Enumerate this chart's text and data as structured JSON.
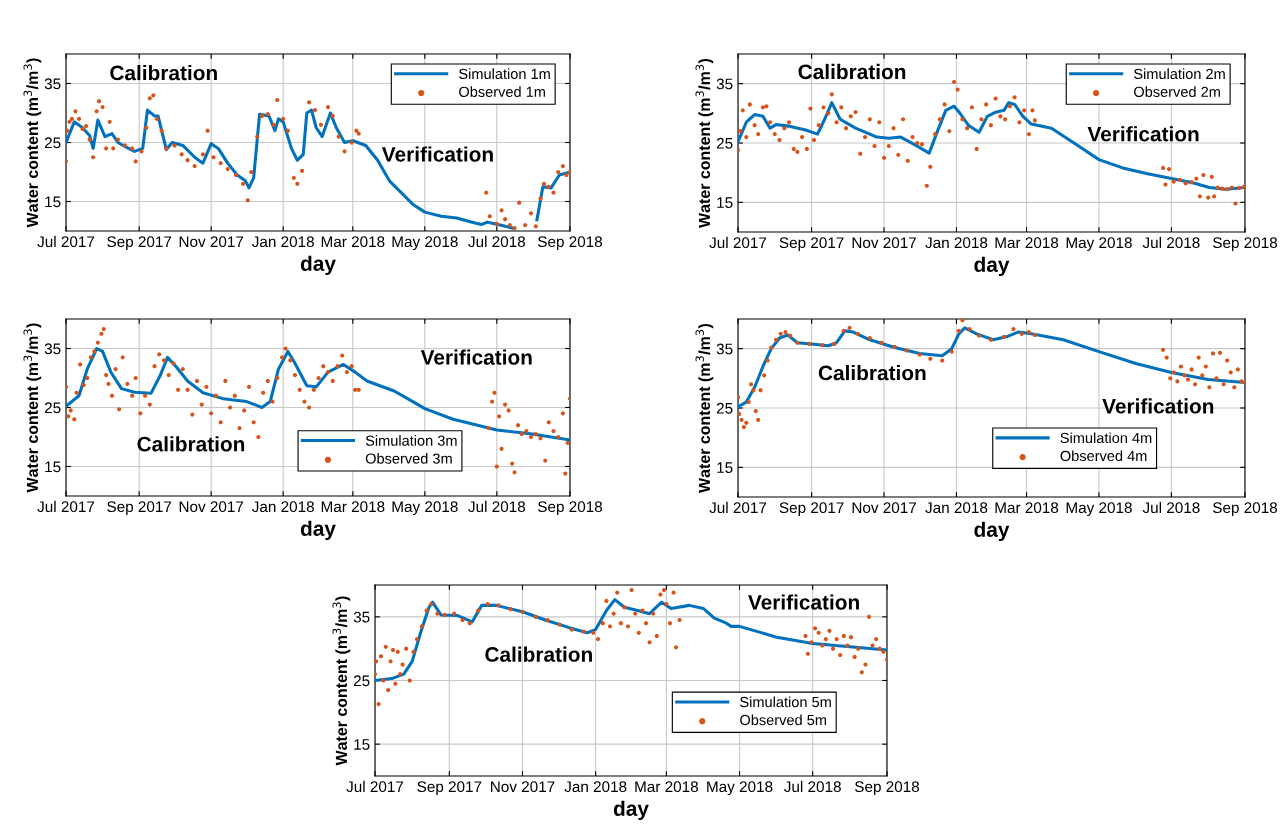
{
  "chart_data": [
    {
      "type": "line",
      "xlabel": "day",
      "ylabel": "Water content (m$^{3}$/m$^{3}$)",
      "xlim": [
        "2017-07-01",
        "2018-09-01"
      ],
      "ylim": [
        10,
        40
      ],
      "yticks": [
        15,
        25,
        35
      ],
      "xticks": [
        {
          "value": "2017-07-01",
          "label": "Jul 2017"
        },
        {
          "value": "2017-09-01",
          "label": "Sep 2017"
        },
        {
          "value": "2017-11-01",
          "label": "Nov 2017"
        },
        {
          "value": "2018-01-01",
          "label": "Jan 2018"
        },
        {
          "value": "2018-03-01",
          "label": "Mar 2018"
        },
        {
          "value": "2018-05-01",
          "label": "May 2018"
        },
        {
          "value": "2018-07-01",
          "label": "Jul 2018"
        },
        {
          "value": "2018-09-01",
          "label": "Sep 2018"
        }
      ],
      "grid": true,
      "legend": "top right",
      "annotations": [
        "Calibration",
        "Verification"
      ],
      "series": [
        {
          "name": "Simulation 1m",
          "color": "#0072bd",
          "x": [
            "2017-07-01",
            "2017-07-08",
            "2017-07-15",
            "2017-07-21",
            "2017-07-24",
            "2017-07-28",
            "2017-08-03",
            "2017-08-09",
            "2017-08-14",
            "2017-08-21",
            "2017-08-28",
            "2017-09-04",
            "2017-09-08",
            "2017-09-14",
            "2017-09-17",
            "2017-09-24",
            "2017-09-29",
            "2017-10-08",
            "2017-10-18",
            "2017-10-25",
            "2017-11-01",
            "2017-11-07",
            "2017-11-15",
            "2017-11-23",
            "2017-11-30",
            "2017-12-03",
            "2017-12-07",
            "2017-12-12",
            "2017-12-20",
            "2017-12-25",
            "2017-12-28",
            "2018-01-01",
            "2018-01-08",
            "2018-01-13",
            "2018-01-18",
            "2018-01-21",
            "2018-01-25",
            "2018-01-29",
            "2018-02-03",
            "2018-02-10",
            "2018-02-15",
            "2018-02-22",
            "2018-03-01",
            "2018-03-12",
            "2018-03-22",
            "2018-04-01",
            "2018-04-11",
            "2018-04-21",
            "2018-05-01",
            "2018-05-15",
            "2018-05-28",
            "2018-06-10",
            "2018-06-18",
            "2018-06-23",
            "2018-07-04",
            "2018-07-14",
            "2018-07-20",
            "2018-08-04",
            "2018-08-09",
            "2018-08-16",
            "2018-08-23",
            "2018-09-01"
          ],
          "values": [
            25,
            28.5,
            27.5,
            26.2,
            24,
            28.8,
            26,
            26.5,
            25,
            24.2,
            23.5,
            24,
            30.5,
            29.5,
            29.5,
            23.8,
            25,
            24.5,
            22.5,
            21.5,
            24.8,
            24,
            21.5,
            19.5,
            18.5,
            17.3,
            19,
            29.8,
            29.5,
            27,
            29,
            28.5,
            24,
            22,
            23,
            30,
            30.5,
            27.5,
            26,
            30,
            27.5,
            25,
            25.3,
            24.5,
            22,
            18.5,
            16.5,
            14.5,
            13.2,
            12.5,
            12.2,
            11.5,
            11.1,
            11.5,
            11,
            10.5,
            null,
            11.9,
            17.5,
            17.3,
            19.5,
            20
          ]
        },
        {
          "name": "Observed 1m",
          "type": "scatter",
          "marker": "circle",
          "color": "#d95319",
          "x": [
            "2017-07-01",
            "2017-07-02",
            "2017-07-04",
            "2017-07-06",
            "2017-07-09",
            "2017-07-12",
            "2017-07-15",
            "2017-07-18",
            "2017-07-21",
            "2017-07-24",
            "2017-07-27",
            "2017-07-29",
            "2017-08-01",
            "2017-08-04",
            "2017-08-07",
            "2017-08-10",
            "2017-08-14",
            "2017-08-20",
            "2017-08-26",
            "2017-08-29",
            "2017-09-03",
            "2017-09-07",
            "2017-09-10",
            "2017-09-13",
            "2017-09-16",
            "2017-09-20",
            "2017-09-24",
            "2017-10-01",
            "2017-10-07",
            "2017-10-12",
            "2017-10-18",
            "2017-10-25",
            "2017-10-29",
            "2017-11-03",
            "2017-11-09",
            "2017-11-15",
            "2017-11-22",
            "2017-11-28",
            "2017-12-02",
            "2017-12-05",
            "2017-12-10",
            "2017-12-14",
            "2017-12-19",
            "2017-12-24",
            "2017-12-27",
            "2018-01-01",
            "2018-01-05",
            "2018-01-10",
            "2018-01-13",
            "2018-01-17",
            "2018-01-23",
            "2018-01-28",
            "2018-02-02",
            "2018-02-08",
            "2018-02-12",
            "2018-02-17",
            "2018-02-22",
            "2018-02-28",
            "2018-03-04",
            "2018-03-06",
            "2018-06-22",
            "2018-06-25",
            "2018-07-01",
            "2018-07-05",
            "2018-07-08",
            "2018-07-12",
            "2018-07-16",
            "2018-07-20",
            "2018-07-25",
            "2018-07-30",
            "2018-08-03",
            "2018-08-07",
            "2018-08-10",
            "2018-08-14",
            "2018-08-18",
            "2018-08-22",
            "2018-08-26",
            "2018-08-29",
            "2018-09-01"
          ],
          "values": [
            21.8,
            27,
            28.5,
            29,
            30.3,
            29,
            27.3,
            27.8,
            25.5,
            22.5,
            30.3,
            32,
            31,
            24,
            28.5,
            24,
            25.5,
            24.5,
            24,
            21.8,
            23.5,
            27.5,
            32.5,
            33,
            29,
            27,
            24,
            24.5,
            23,
            22,
            21,
            23,
            27,
            22.5,
            21.5,
            20.5,
            19.5,
            18,
            15.2,
            20,
            26,
            29.5,
            29.8,
            28,
            32.2,
            29,
            27,
            19,
            18,
            20.2,
            31.8,
            30.5,
            28,
            31,
            29.5,
            26,
            23.5,
            25,
            27,
            26.5,
            16.5,
            12.5,
            11.2,
            13.5,
            12,
            11,
            10.5,
            14.8,
            11,
            13,
            10.8,
            15.5,
            18,
            17.5,
            16.5,
            20,
            21,
            19.5,
            20
          ]
        }
      ]
    },
    {
      "type": "line",
      "xlabel": "day",
      "ylabel": "Water content (m$^{3}$/m$^{3}$)",
      "xlim": [
        "2017-07-01",
        "2018-09-01"
      ],
      "ylim": [
        10,
        40
      ],
      "yticks": [
        15,
        25,
        35
      ],
      "xticks": [
        {
          "value": "2017-07-01",
          "label": "Jul 2017"
        },
        {
          "value": "2017-09-01",
          "label": "Sep 2017"
        },
        {
          "value": "2017-11-01",
          "label": "Nov 2017"
        },
        {
          "value": "2018-01-01",
          "label": "Jan 2018"
        },
        {
          "value": "2018-03-01",
          "label": "Mar 2018"
        },
        {
          "value": "2018-05-01",
          "label": "May 2018"
        },
        {
          "value": "2018-07-01",
          "label": "Jul 2018"
        },
        {
          "value": "2018-09-01",
          "label": "Sep 2018"
        }
      ],
      "grid": true,
      "legend": "top right",
      "annotations": [
        "Calibration",
        "Verification"
      ],
      "series": [
        {
          "name": "Simulation 2m",
          "color": "#0072bd",
          "x": [
            "2017-07-01",
            "2017-07-08",
            "2017-07-15",
            "2017-07-22",
            "2017-07-28",
            "2017-08-02",
            "2017-08-14",
            "2017-08-27",
            "2017-09-06",
            "2017-09-12",
            "2017-09-18",
            "2017-09-25",
            "2017-10-08",
            "2017-10-26",
            "2017-11-05",
            "2017-11-15",
            "2017-11-26",
            "2017-12-09",
            "2017-12-16",
            "2017-12-23",
            "2017-12-30",
            "2018-01-04",
            "2018-01-11",
            "2018-01-20",
            "2018-01-27",
            "2018-02-03",
            "2018-02-10",
            "2018-02-14",
            "2018-02-19",
            "2018-02-26",
            "2018-03-05",
            "2018-03-22",
            "2018-04-10",
            "2018-05-01",
            "2018-05-21",
            "2018-06-11",
            "2018-07-01",
            "2018-07-19",
            "2018-08-02",
            "2018-08-16",
            "2018-09-01"
          ],
          "values": [
            25.2,
            28.5,
            29.8,
            29.5,
            27.5,
            28.1,
            27.8,
            27.2,
            26.5,
            29,
            31.8,
            29,
            27.5,
            26,
            25.8,
            26,
            24.8,
            23.3,
            27,
            30.5,
            31.2,
            30,
            28,
            26.8,
            29.5,
            30.2,
            30.5,
            31.8,
            31.5,
            29.5,
            28.2,
            27.5,
            25,
            22.2,
            20.8,
            19.8,
            19,
            18.3,
            17.5,
            17.2,
            17.5
          ]
        },
        {
          "name": "Observed 2m",
          "type": "scatter",
          "marker": "circle",
          "color": "#d95319",
          "x": [
            "2017-07-01",
            "2017-07-03",
            "2017-07-05",
            "2017-07-08",
            "2017-07-11",
            "2017-07-15",
            "2017-07-18",
            "2017-07-22",
            "2017-07-25",
            "2017-07-28",
            "2017-08-01",
            "2017-08-05",
            "2017-08-09",
            "2017-08-13",
            "2017-08-17",
            "2017-08-20",
            "2017-08-24",
            "2017-08-28",
            "2017-08-31",
            "2017-09-03",
            "2017-09-07",
            "2017-09-11",
            "2017-09-15",
            "2017-09-18",
            "2017-09-22",
            "2017-09-26",
            "2017-09-30",
            "2017-10-04",
            "2017-10-08",
            "2017-10-12",
            "2017-10-16",
            "2017-10-20",
            "2017-10-24",
            "2017-10-28",
            "2017-11-01",
            "2017-11-05",
            "2017-11-09",
            "2017-11-13",
            "2017-11-17",
            "2017-11-21",
            "2017-11-25",
            "2017-11-29",
            "2017-12-03",
            "2017-12-07",
            "2017-12-10",
            "2017-12-14",
            "2017-12-18",
            "2017-12-22",
            "2017-12-26",
            "2017-12-30",
            "2018-01-02",
            "2018-01-06",
            "2018-01-10",
            "2018-01-14",
            "2018-01-18",
            "2018-01-22",
            "2018-01-26",
            "2018-01-30",
            "2018-02-03",
            "2018-02-07",
            "2018-02-11",
            "2018-02-15",
            "2018-02-19",
            "2018-02-23",
            "2018-02-27",
            "2018-03-03",
            "2018-03-06",
            "2018-03-08",
            "2018-06-24",
            "2018-06-26",
            "2018-06-29",
            "2018-07-03",
            "2018-07-08",
            "2018-07-13",
            "2018-07-18",
            "2018-07-22",
            "2018-07-25",
            "2018-07-28",
            "2018-08-01",
            "2018-08-04",
            "2018-08-06",
            "2018-08-09",
            "2018-08-13",
            "2018-08-17",
            "2018-08-21",
            "2018-08-24",
            "2018-08-27",
            "2018-08-31"
          ],
          "values": [
            23.8,
            27,
            30.5,
            26,
            31.5,
            28,
            26.5,
            31,
            31.2,
            28.5,
            26.5,
            25.5,
            27.5,
            28.5,
            24,
            23.5,
            26,
            24,
            30.8,
            25.5,
            28,
            31,
            30,
            33.2,
            28.5,
            31,
            27.5,
            29.5,
            30.2,
            23.2,
            26,
            29,
            24.5,
            28.5,
            22.5,
            24.5,
            27.5,
            23,
            29,
            22,
            26,
            25,
            24.8,
            17.8,
            21,
            26.5,
            29,
            31.5,
            27,
            35.3,
            34,
            29,
            27.5,
            31,
            24,
            29,
            31.5,
            28,
            32.5,
            29.5,
            29,
            31.2,
            32.7,
            28.5,
            30.5,
            26.5,
            30.5,
            28.8,
            20.8,
            18,
            20.6,
            18.5,
            18.8,
            18.2,
            18.4,
            19,
            16,
            19.6,
            15.8,
            19.3,
            16,
            17.5,
            17.3,
            17.2,
            17.5,
            14.8,
            17.4,
            17.6
          ]
        }
      ]
    },
    {
      "type": "line",
      "xlabel": "day",
      "ylabel": "Water content (m$^{3}$/m$^{3}$)",
      "xlim": [
        "2017-07-01",
        "2018-09-01"
      ],
      "ylim": [
        10,
        40
      ],
      "yticks": [
        15,
        25,
        35
      ],
      "xticks": [
        {
          "value": "2017-07-01",
          "label": "Jul 2017"
        },
        {
          "value": "2017-09-01",
          "label": "Sep 2017"
        },
        {
          "value": "2017-11-01",
          "label": "Nov 2017"
        },
        {
          "value": "2018-01-01",
          "label": "Jan 2018"
        },
        {
          "value": "2018-03-01",
          "label": "Mar 2018"
        },
        {
          "value": "2018-05-01",
          "label": "May 2018"
        },
        {
          "value": "2018-07-01",
          "label": "Jul 2018"
        },
        {
          "value": "2018-09-01",
          "label": "Sep 2018"
        }
      ],
      "grid": true,
      "legend": "bottom right",
      "annotations": [
        "Calibration",
        "Verification"
      ],
      "series": [
        {
          "name": "Simulation 3m",
          "color": "#0072bd",
          "x": [
            "2017-07-01",
            "2017-07-12",
            "2017-07-19",
            "2017-07-27",
            "2017-08-01",
            "2017-08-08",
            "2017-08-17",
            "2017-08-28",
            "2017-09-11",
            "2017-09-19",
            "2017-09-25",
            "2017-10-02",
            "2017-10-12",
            "2017-10-25",
            "2017-11-11",
            "2017-12-01",
            "2017-12-14",
            "2017-12-21",
            "2017-12-28",
            "2018-01-05",
            "2018-01-11",
            "2018-01-21",
            "2018-01-29",
            "2018-02-08",
            "2018-02-21",
            "2018-03-03",
            "2018-03-13",
            "2018-04-05",
            "2018-04-12",
            "2018-05-01",
            "2018-05-25",
            "2018-07-01",
            "2018-07-31",
            "2018-09-01"
          ],
          "values": [
            25.2,
            27,
            31.5,
            35,
            34.5,
            31,
            28.2,
            27.6,
            27.4,
            30.5,
            33.5,
            32,
            29.5,
            27.5,
            26.5,
            26,
            25,
            26,
            31.5,
            34.5,
            32.5,
            28.7,
            28.5,
            31,
            32.3,
            31,
            29.5,
            27.8,
            27,
            24.8,
            23,
            21.2,
            20.5,
            19.5
          ]
        },
        {
          "name": "Observed 3m",
          "type": "scatter",
          "marker": "circle",
          "color": "#d95319",
          "x": [
            "2017-07-01",
            "2017-07-03",
            "2017-07-05",
            "2017-07-08",
            "2017-07-10",
            "2017-07-13",
            "2017-07-16",
            "2017-07-19",
            "2017-07-22",
            "2017-07-25",
            "2017-07-28",
            "2017-07-31",
            "2017-08-02",
            "2017-08-04",
            "2017-08-06",
            "2017-08-09",
            "2017-08-12",
            "2017-08-15",
            "2017-08-18",
            "2017-08-22",
            "2017-08-26",
            "2017-08-29",
            "2017-09-02",
            "2017-09-06",
            "2017-09-10",
            "2017-09-14",
            "2017-09-18",
            "2017-09-22",
            "2017-09-26",
            "2017-09-30",
            "2017-10-04",
            "2017-10-08",
            "2017-10-12",
            "2017-10-16",
            "2017-10-20",
            "2017-10-24",
            "2017-10-28",
            "2017-11-01",
            "2017-11-05",
            "2017-11-09",
            "2017-11-13",
            "2017-11-17",
            "2017-11-21",
            "2017-11-25",
            "2017-11-29",
            "2017-12-03",
            "2017-12-07",
            "2017-12-11",
            "2017-12-15",
            "2017-12-19",
            "2017-12-23",
            "2017-12-27",
            "2017-12-31",
            "2018-01-03",
            "2018-01-07",
            "2018-01-11",
            "2018-01-15",
            "2018-01-19",
            "2018-01-23",
            "2018-01-27",
            "2018-01-31",
            "2018-02-04",
            "2018-02-08",
            "2018-02-12",
            "2018-02-16",
            "2018-02-20",
            "2018-02-24",
            "2018-02-28",
            "2018-03-03",
            "2018-03-06",
            "2018-06-24",
            "2018-06-27",
            "2018-06-29",
            "2018-07-01",
            "2018-07-03",
            "2018-07-05",
            "2018-07-08",
            "2018-07-11",
            "2018-07-14",
            "2018-07-16",
            "2018-07-19",
            "2018-07-22",
            "2018-07-26",
            "2018-07-30",
            "2018-08-03",
            "2018-08-07",
            "2018-08-11",
            "2018-08-14",
            "2018-08-18",
            "2018-08-22",
            "2018-08-26",
            "2018-08-28",
            "2018-08-30",
            "2018-09-01"
          ],
          "values": [
            28.5,
            23.5,
            24.5,
            23,
            27.5,
            32.3,
            28.8,
            30,
            33.5,
            34.5,
            36,
            37.5,
            38.3,
            30.5,
            29,
            27,
            31.5,
            24.7,
            33.5,
            29,
            27,
            30,
            24,
            27,
            25.5,
            32,
            34,
            33,
            30.5,
            32.5,
            28,
            31.5,
            28,
            23.8,
            29.5,
            25.5,
            28.5,
            24,
            27,
            22.5,
            29.5,
            25,
            27,
            21.5,
            24.5,
            28.5,
            22.5,
            20,
            27.5,
            29.5,
            26,
            30,
            33.5,
            35,
            33,
            30.5,
            28,
            26,
            25,
            28,
            30,
            32,
            31,
            29.5,
            32,
            33.8,
            31,
            32,
            28,
            28,
            21.5,
            26,
            27.5,
            15,
            23.5,
            18,
            25.5,
            24.5,
            15.5,
            14,
            22,
            20.5,
            21,
            20,
            20.5,
            19.8,
            16,
            22.5,
            21,
            20,
            24,
            13.8,
            19,
            26.5
          ]
        }
      ]
    },
    {
      "type": "line",
      "xlabel": "day",
      "ylabel": "Water content (m$^{3}$/m$^{3}$)",
      "xlim": [
        "2017-07-01",
        "2018-09-01"
      ],
      "ylim": [
        10,
        40
      ],
      "yticks": [
        15,
        25,
        35
      ],
      "xticks": [
        {
          "value": "2017-07-01",
          "label": "Jul 2017"
        },
        {
          "value": "2017-09-01",
          "label": "Sep 2017"
        },
        {
          "value": "2017-11-01",
          "label": "Nov 2017"
        },
        {
          "value": "2018-01-01",
          "label": "Jan 2018"
        },
        {
          "value": "2018-03-01",
          "label": "Mar 2018"
        },
        {
          "value": "2018-05-01",
          "label": "May 2018"
        },
        {
          "value": "2018-07-01",
          "label": "Jul 2018"
        },
        {
          "value": "2018-09-01",
          "label": "Sep 2018"
        }
      ],
      "grid": true,
      "legend": "bottom right",
      "annotations": [
        "Calibration",
        "Verification"
      ],
      "series": [
        {
          "name": "Simulation 4m",
          "color": "#0072bd",
          "x": [
            "2017-07-01",
            "2017-07-08",
            "2017-07-15",
            "2017-07-22",
            "2017-07-29",
            "2017-08-05",
            "2017-08-12",
            "2017-08-20",
            "2017-09-01",
            "2017-09-15",
            "2017-09-22",
            "2017-09-29",
            "2017-10-06",
            "2017-10-20",
            "2017-11-10",
            "2017-12-01",
            "2017-12-20",
            "2017-12-28",
            "2018-01-03",
            "2018-01-08",
            "2018-01-18",
            "2018-02-01",
            "2018-02-12",
            "2018-02-22",
            "2018-03-05",
            "2018-04-01",
            "2018-05-01",
            "2018-06-01",
            "2018-07-01",
            "2018-08-01",
            "2018-09-01"
          ],
          "values": [
            25.2,
            26,
            28.5,
            32,
            35,
            36.8,
            37.3,
            36,
            35.8,
            35.5,
            36,
            38,
            37.8,
            36.5,
            35.2,
            34.2,
            33.8,
            35,
            37.5,
            38.5,
            37.5,
            36.5,
            37,
            37.8,
            37.5,
            36.5,
            34.5,
            32.5,
            31,
            29.8,
            29.3
          ]
        },
        {
          "name": "Observed 4m",
          "type": "scatter",
          "marker": "circle",
          "color": "#d95319",
          "x": [
            "2017-07-01",
            "2017-07-02",
            "2017-07-04",
            "2017-07-06",
            "2017-07-08",
            "2017-07-10",
            "2017-07-12",
            "2017-07-14",
            "2017-07-16",
            "2017-07-18",
            "2017-07-20",
            "2017-07-23",
            "2017-07-26",
            "2017-07-29",
            "2017-08-02",
            "2017-08-06",
            "2017-08-10",
            "2017-08-14",
            "2017-08-20",
            "2017-08-30",
            "2017-09-10",
            "2017-09-20",
            "2017-09-28",
            "2017-10-03",
            "2017-10-10",
            "2017-10-20",
            "2017-10-30",
            "2017-11-10",
            "2017-11-20",
            "2017-12-01",
            "2017-12-10",
            "2017-12-20",
            "2017-12-28",
            "2018-01-03",
            "2018-01-06",
            "2018-01-12",
            "2018-01-20",
            "2018-01-30",
            "2018-02-10",
            "2018-02-18",
            "2018-02-25",
            "2018-03-03",
            "2018-03-08",
            "2018-06-24",
            "2018-06-27",
            "2018-06-30",
            "2018-07-03",
            "2018-07-06",
            "2018-07-09",
            "2018-07-12",
            "2018-07-15",
            "2018-07-18",
            "2018-07-21",
            "2018-07-24",
            "2018-07-27",
            "2018-07-30",
            "2018-08-02",
            "2018-08-05",
            "2018-08-08",
            "2018-08-11",
            "2018-08-14",
            "2018-08-17",
            "2018-08-20",
            "2018-08-23",
            "2018-08-26",
            "2018-08-29",
            "2018-09-01"
          ],
          "values": [
            26.8,
            24,
            23,
            21.8,
            22.5,
            26,
            29,
            28,
            24.5,
            23,
            28,
            30.5,
            33,
            35.2,
            36.5,
            37.5,
            37.8,
            37.2,
            36,
            35.8,
            35.6,
            35.8,
            38,
            38.5,
            37.5,
            36.8,
            36,
            35.3,
            34.7,
            34,
            33.3,
            33,
            34.5,
            38,
            39.8,
            38.3,
            37.2,
            36.5,
            37,
            38.3,
            37.5,
            37.8,
            37.3,
            34.8,
            33.5,
            30,
            31,
            29.5,
            32,
            30.5,
            29.8,
            31.5,
            29,
            33.5,
            30.5,
            32,
            28.5,
            34.2,
            30,
            34.3,
            29,
            33,
            31,
            28.5,
            31.5,
            29.5,
            29.3
          ]
        }
      ]
    },
    {
      "type": "line",
      "xlabel": "day",
      "ylabel": "Water content (m$^{3}$/m$^{3}$)",
      "xlim": [
        "2017-07-01",
        "2018-09-01"
      ],
      "ylim": [
        10,
        40
      ],
      "yticks": [
        15,
        25,
        35
      ],
      "xticks": [
        {
          "value": "2017-07-01",
          "label": "Jul 2017"
        },
        {
          "value": "2017-09-01",
          "label": "Sep 2017"
        },
        {
          "value": "2017-11-01",
          "label": "Nov 2017"
        },
        {
          "value": "2018-01-01",
          "label": "Jan 2018"
        },
        {
          "value": "2018-03-01",
          "label": "Mar 2018"
        },
        {
          "value": "2018-05-01",
          "label": "May 2018"
        },
        {
          "value": "2018-07-01",
          "label": "Jul 2018"
        },
        {
          "value": "2018-09-01",
          "label": "Sep 2018"
        }
      ],
      "grid": true,
      "legend": "bottom right",
      "annotations": [
        "Calibration",
        "Verification"
      ],
      "series": [
        {
          "name": "Simulation 5m",
          "color": "#0072bd",
          "x": [
            "2017-07-01",
            "2017-07-15",
            "2017-07-25",
            "2017-08-01",
            "2017-08-08",
            "2017-08-15",
            "2017-08-18",
            "2017-08-25",
            "2017-09-08",
            "2017-09-20",
            "2017-09-28",
            "2017-10-10",
            "2017-11-01",
            "2017-11-20",
            "2017-12-10",
            "2017-12-25",
            "2018-01-01",
            "2018-01-10",
            "2018-01-17",
            "2018-01-25",
            "2018-02-05",
            "2018-02-15",
            "2018-02-25",
            "2018-03-05",
            "2018-03-20",
            "2018-04-01",
            "2018-04-10",
            "2018-04-20",
            "2018-04-24",
            "2018-05-01",
            "2018-06-01",
            "2018-07-01",
            "2018-08-01",
            "2018-09-01"
          ],
          "values": [
            25,
            25.3,
            26,
            28,
            32.5,
            36.5,
            37.3,
            35.3,
            35.2,
            34.2,
            36.8,
            36.8,
            35.8,
            34.5,
            33.3,
            32.5,
            33,
            36,
            37.7,
            36.5,
            36,
            35.5,
            37.3,
            36.3,
            36.8,
            36.3,
            34.8,
            34,
            33.5,
            33.5,
            31.8,
            30.8,
            30.3,
            29.8
          ]
        },
        {
          "name": "Observed 5m",
          "type": "scatter",
          "marker": "circle",
          "color": "#d95319",
          "x": [
            "2017-07-01",
            "2017-07-02",
            "2017-07-04",
            "2017-07-06",
            "2017-07-08",
            "2017-07-10",
            "2017-07-12",
            "2017-07-14",
            "2017-07-16",
            "2017-07-18",
            "2017-07-20",
            "2017-07-22",
            "2017-07-24",
            "2017-07-27",
            "2017-07-30",
            "2017-08-02",
            "2017-08-05",
            "2017-08-09",
            "2017-08-13",
            "2017-08-17",
            "2017-08-22",
            "2017-08-28",
            "2017-09-05",
            "2017-09-12",
            "2017-09-18",
            "2017-09-25",
            "2017-10-03",
            "2017-10-12",
            "2017-10-22",
            "2017-11-01",
            "2017-11-12",
            "2017-11-22",
            "2017-12-02",
            "2017-12-12",
            "2017-12-22",
            "2017-12-30",
            "2018-01-03",
            "2018-01-07",
            "2018-01-10",
            "2018-01-13",
            "2018-01-16",
            "2018-01-19",
            "2018-01-22",
            "2018-01-25",
            "2018-01-28",
            "2018-01-31",
            "2018-02-03",
            "2018-02-06",
            "2018-02-09",
            "2018-02-12",
            "2018-02-15",
            "2018-02-18",
            "2018-02-21",
            "2018-02-24",
            "2018-02-27",
            "2018-03-01",
            "2018-03-04",
            "2018-03-07",
            "2018-03-09",
            "2018-03-12",
            "2018-06-25",
            "2018-06-27",
            "2018-06-30",
            "2018-07-03",
            "2018-07-06",
            "2018-07-09",
            "2018-07-12",
            "2018-07-15",
            "2018-07-18",
            "2018-07-21",
            "2018-07-24",
            "2018-07-27",
            "2018-07-30",
            "2018-08-02",
            "2018-08-05",
            "2018-08-08",
            "2018-08-11",
            "2018-08-14",
            "2018-08-17",
            "2018-08-20",
            "2018-08-23",
            "2018-08-26",
            "2018-08-29",
            "2018-09-01"
          ],
          "values": [
            26,
            28,
            21.3,
            28.8,
            25,
            30.3,
            23.5,
            28,
            29.8,
            24.5,
            29.5,
            26,
            27.5,
            30,
            25,
            29.5,
            31.5,
            33.5,
            36,
            37,
            35.5,
            35.3,
            35.5,
            34.5,
            34,
            36,
            37,
            36.8,
            36.2,
            35.8,
            35,
            34.5,
            33.8,
            33,
            32.7,
            32.5,
            31.5,
            34,
            37.5,
            33.5,
            35.5,
            38.8,
            34,
            36.5,
            33.5,
            39.2,
            35.5,
            32.5,
            36,
            34,
            31,
            35.5,
            32,
            38.5,
            39.2,
            37,
            34,
            38.8,
            30.2,
            34.5,
            32,
            29.2,
            31,
            33.2,
            32.5,
            30.5,
            31.5,
            32.8,
            30,
            31.5,
            29,
            32,
            30.5,
            31.8,
            28.7,
            30,
            26.3,
            27.5,
            35,
            30.5,
            31.5,
            30,
            29.5,
            28.3
          ]
        }
      ]
    }
  ]
}
